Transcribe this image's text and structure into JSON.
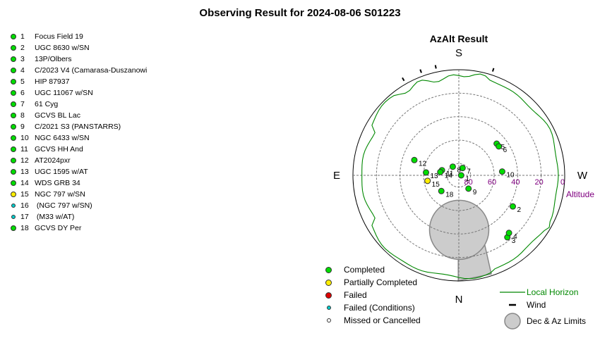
{
  "title": "Observing Result for 2024-08-06 S01223",
  "colors": {
    "completed": "#00dd00",
    "partial": "#ffee00",
    "failed": "#dd0000",
    "failed_conditions": "#00cccc",
    "missed": "#ffffff",
    "horizon": "#008800",
    "altitude_label": "#800080",
    "limits_fill": "#cccccc"
  },
  "targets": [
    {
      "num": "1",
      "name": "Focus Field 19",
      "status": "completed"
    },
    {
      "num": "2",
      "name": "UGC 8630 w/SN",
      "status": "completed"
    },
    {
      "num": "3",
      "name": "13P/Olbers",
      "status": "completed"
    },
    {
      "num": "4",
      "name": "C/2023 V4 (Camarasa-Duszanowi",
      "status": "completed"
    },
    {
      "num": "5",
      "name": "HIP 87937",
      "status": "completed"
    },
    {
      "num": "6",
      "name": "UGC 11067 w/SN",
      "status": "completed"
    },
    {
      "num": "7",
      "name": "61 Cyg",
      "status": "completed"
    },
    {
      "num": "8",
      "name": "GCVS BL Lac",
      "status": "completed"
    },
    {
      "num": "9",
      "name": "C/2021 S3 (PANSTARRS)",
      "status": "completed"
    },
    {
      "num": "10",
      "name": "NGC 6433 w/SN",
      "status": "completed"
    },
    {
      "num": "11",
      "name": "GCVS HH And",
      "status": "completed"
    },
    {
      "num": "12",
      "name": "AT2024pxr",
      "status": "completed"
    },
    {
      "num": "13",
      "name": "UGC 1595 w/AT",
      "status": "completed"
    },
    {
      "num": "14",
      "name": "WDS GRB 34",
      "status": "completed"
    },
    {
      "num": "15",
      "name": "NGC 797 w/SN",
      "status": "partial"
    },
    {
      "num": "16",
      "name": " (NGC 797 w/SN)",
      "status": "failed_conditions"
    },
    {
      "num": "17",
      "name": " (M33 w/AT)",
      "status": "failed_conditions"
    },
    {
      "num": "18",
      "name": "GCVS DY Per",
      "status": "completed"
    }
  ],
  "chart_data": {
    "type": "scatter",
    "projection": "polar-azalt",
    "title": "AzAlt Result",
    "compass": {
      "top": "S",
      "bottom": "N",
      "left": "E",
      "right": "W"
    },
    "altitude_rings": [
      0,
      20,
      40,
      60,
      80
    ],
    "altitude_ticks": [
      "80",
      "60",
      "40",
      "20",
      "0"
    ],
    "altitude_label": "Altitude",
    "points": [
      {
        "label": "1",
        "az": 270,
        "alt": 88,
        "status": "completed"
      },
      {
        "label": "2",
        "az": 300,
        "alt": 37,
        "status": "completed"
      },
      {
        "label": "3",
        "az": 322,
        "alt": 23,
        "status": "completed"
      },
      {
        "label": "4",
        "az": 319,
        "alt": 25,
        "status": "completed"
      },
      {
        "label": "5",
        "az": 230,
        "alt": 48,
        "status": "completed"
      },
      {
        "label": "6",
        "az": 234,
        "alt": 48,
        "status": "completed"
      },
      {
        "label": "7",
        "az": 207,
        "alt": 83,
        "status": "completed"
      },
      {
        "label": "8",
        "az": 145,
        "alt": 81,
        "status": "completed"
      },
      {
        "label": "9",
        "az": 324,
        "alt": 76,
        "status": "completed"
      },
      {
        "label": "10",
        "az": 265,
        "alt": 53,
        "status": "completed"
      },
      {
        "label": "11",
        "az": 107,
        "alt": 75,
        "status": "completed"
      },
      {
        "label": "12",
        "az": 109,
        "alt": 50,
        "status": "completed"
      },
      {
        "label": "13",
        "az": 95,
        "alt": 62,
        "status": "completed"
      },
      {
        "label": "14",
        "az": 100,
        "alt": 74,
        "status": "completed"
      },
      {
        "label": "15",
        "az": 80,
        "alt": 63,
        "status": "partial"
      },
      {
        "label": "18",
        "az": 48,
        "alt": 70,
        "status": "completed"
      }
    ],
    "point_labels": {
      "16": "16",
      "17": "17"
    },
    "wind_marks_az": [
      198,
      168,
      160,
      150
    ],
    "legend": {
      "completed": "Completed",
      "partial": "Partially Completed",
      "failed": "Failed",
      "failed_conditions": "Failed (Conditions)",
      "missed": "Missed or Cancelled",
      "horizon": "Local Horizon",
      "wind": "Wind",
      "limits": "Dec & Az Limits"
    }
  }
}
